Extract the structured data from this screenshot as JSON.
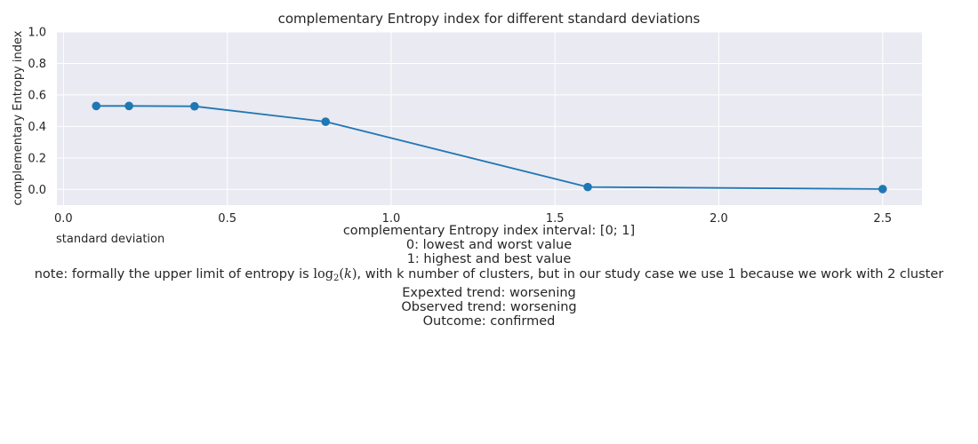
{
  "chart_data": {
    "type": "line",
    "title": "complementary Entropy index for different standard deviations",
    "xlabel": "standard deviation",
    "ylabel": "complementary Entropy index",
    "x": [
      0.1,
      0.2,
      0.4,
      0.8,
      1.6,
      2.5
    ],
    "series": [
      {
        "values": [
          0.53,
          0.53,
          0.528,
          0.43,
          0.015,
          0.002
        ]
      }
    ],
    "xlim": [
      -0.02,
      2.62
    ],
    "ylim": [
      -0.1,
      1.0
    ],
    "xticks": [
      "0.0",
      "0.5",
      "1.0",
      "1.5",
      "2.0",
      "2.5"
    ],
    "yticks": [
      "0.0",
      "0.2",
      "0.4",
      "0.6",
      "0.8",
      "1.0"
    ],
    "grid": true,
    "colors": {
      "line": "#1f77b4",
      "background": "#eaeaf2",
      "grid": "#ffffff"
    }
  },
  "notes": {
    "interval": "complementary Entropy index interval: [0; 1]",
    "lowest": "0: lowest and worst value",
    "highest": "1: highest and best value",
    "note_prefix": "note: formally the upper limit of entropy is ",
    "note_log": "log",
    "note_base": "2",
    "note_arg": "k",
    "note_suffix": ", with k number of clusters, but in our study case we use 1 because we work with 2 cluster",
    "expected": "Expexted trend: worsening",
    "observed": "Observed trend: worsening",
    "outcome": "Outcome: confirmed"
  }
}
